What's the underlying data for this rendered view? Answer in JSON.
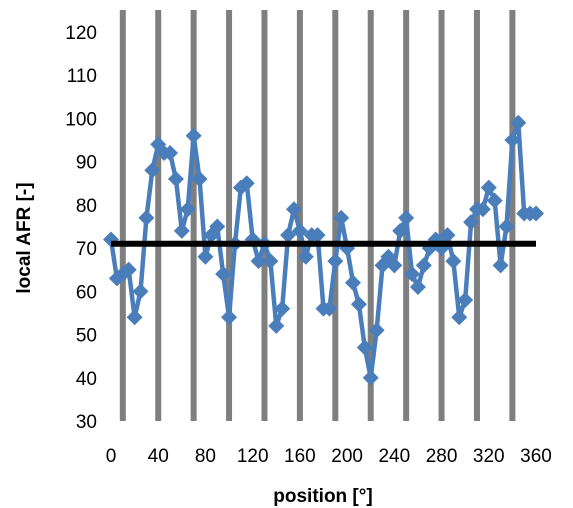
{
  "chart_data": {
    "type": "scatter",
    "xlabel": "position [°]",
    "ylabel": "local AFR [-]",
    "xlim": [
      0,
      360
    ],
    "ylim": [
      30,
      120
    ],
    "xticks": [
      0,
      40,
      80,
      120,
      160,
      200,
      240,
      280,
      320,
      360
    ],
    "yticks": [
      30,
      40,
      50,
      60,
      70,
      80,
      90,
      100,
      110,
      120
    ],
    "vertical_lines": [
      10,
      40,
      70,
      100,
      130,
      160,
      190,
      220,
      250,
      280,
      310,
      340
    ],
    "reference_line": {
      "y": 71
    },
    "series": [
      {
        "x": [
          0,
          5,
          10,
          15,
          20,
          25,
          30,
          35,
          40,
          45,
          50,
          55,
          60,
          65,
          70,
          75,
          80,
          85,
          90,
          95,
          100,
          105,
          110,
          115,
          120,
          125,
          130,
          135,
          140,
          145,
          150,
          155,
          160,
          165,
          170,
          175,
          180,
          185,
          190,
          195,
          200,
          205,
          210,
          215,
          220,
          225,
          230,
          235,
          240,
          245,
          250,
          255,
          260,
          265,
          270,
          275,
          280,
          285,
          290,
          295,
          300,
          305,
          310,
          315,
          320,
          325,
          330,
          335,
          340,
          345,
          350,
          355,
          360
        ],
        "y": [
          72,
          63,
          64,
          65,
          54,
          60,
          77,
          88,
          94,
          92,
          92,
          86,
          74,
          79,
          96,
          86,
          68,
          73,
          75,
          64,
          54,
          71,
          84,
          85,
          72,
          67,
          71,
          67,
          52,
          56,
          73,
          79,
          74,
          68,
          73,
          73,
          56,
          56,
          67,
          77,
          70,
          62,
          57,
          47,
          40,
          51,
          66,
          68,
          66,
          74,
          77,
          64,
          61,
          66,
          70,
          72,
          70,
          73,
          67,
          54,
          58,
          76,
          79,
          79,
          84,
          81,
          66,
          75,
          95,
          99,
          78,
          78,
          78
        ]
      }
    ],
    "colors": {
      "series": "#4A7EBB",
      "reference": "#000000",
      "vertical_lines": "#7F7F7F"
    }
  }
}
